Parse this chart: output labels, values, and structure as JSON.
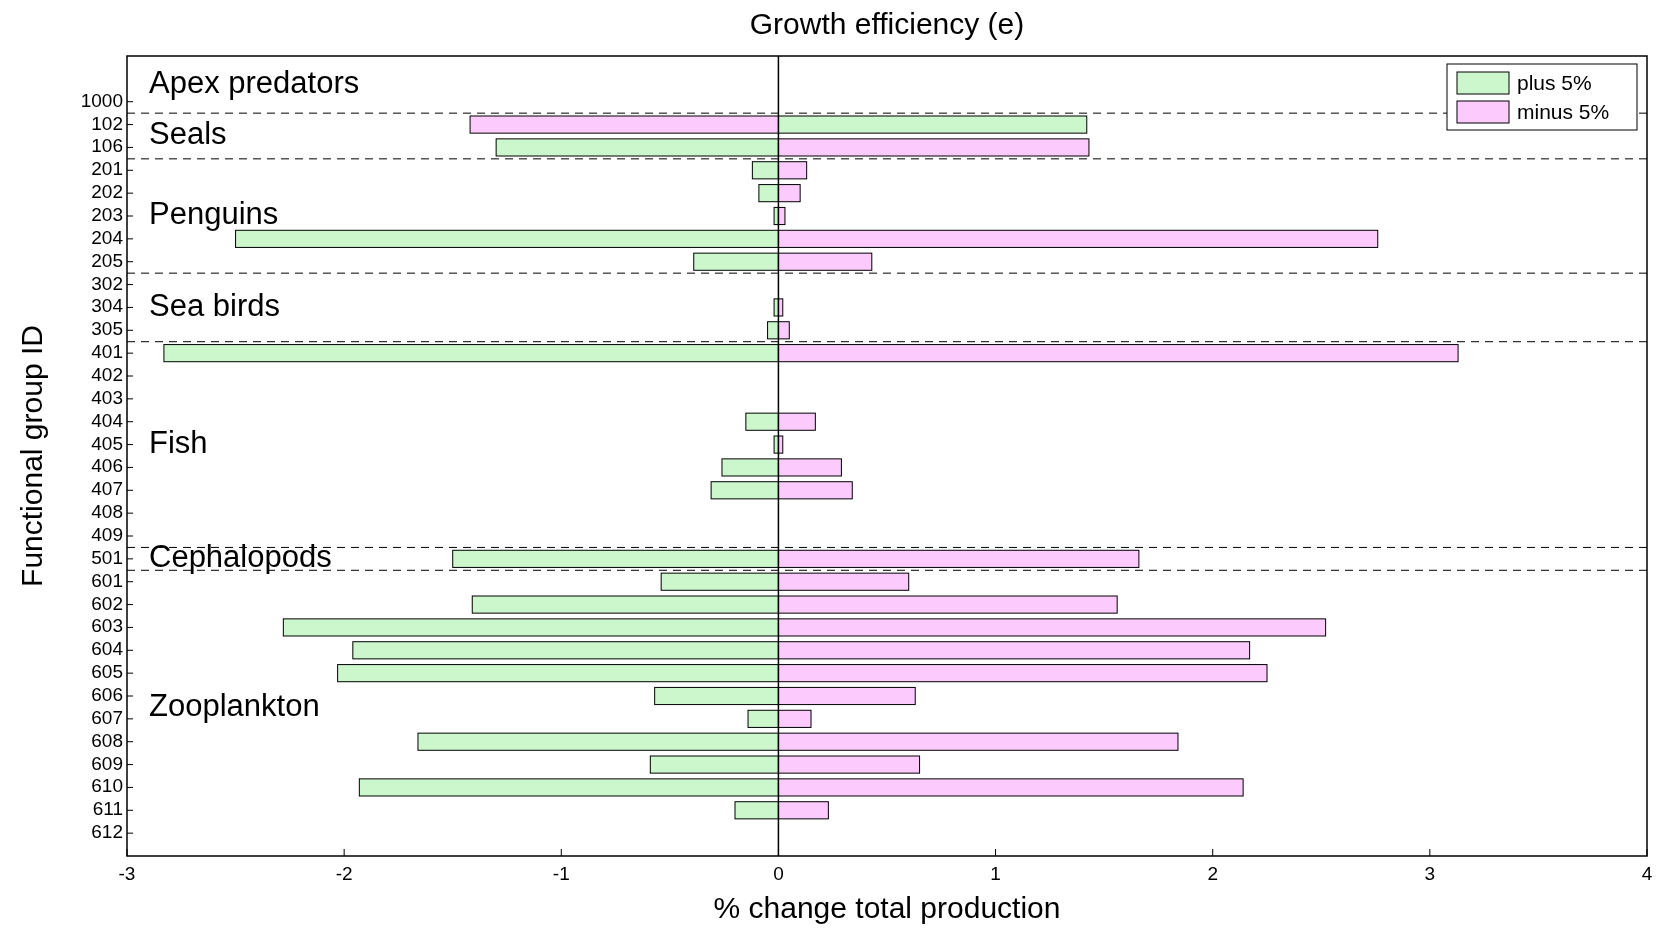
{
  "chart_data": {
    "type": "bar",
    "orientation": "horizontal",
    "title": "Growth efficiency (e)",
    "xlabel": "% change total production",
    "ylabel": "Functional group ID",
    "categories": [
      "1000",
      "102",
      "106",
      "201",
      "202",
      "203",
      "204",
      "205",
      "302",
      "304",
      "305",
      "401",
      "402",
      "403",
      "404",
      "405",
      "406",
      "407",
      "408",
      "409",
      "501",
      "601",
      "602",
      "603",
      "604",
      "605",
      "606",
      "607",
      "608",
      "609",
      "610",
      "611",
      "612"
    ],
    "series": [
      {
        "name": "plus 5%",
        "color": "#ccf7cc",
        "values": [
          0,
          1.42,
          -1.3,
          -0.12,
          -0.09,
          -0.02,
          -2.5,
          -0.39,
          0,
          -0.02,
          -0.05,
          -2.83,
          0,
          0,
          -0.15,
          -0.02,
          -0.26,
          -0.31,
          0,
          0,
          -1.5,
          -0.54,
          -1.41,
          -2.28,
          -1.96,
          -2.03,
          -0.57,
          -0.14,
          -1.66,
          -0.59,
          -1.93,
          -0.2,
          0
        ]
      },
      {
        "name": "minus 5%",
        "color": "#fccafc",
        "values": [
          0,
          -1.42,
          1.43,
          0.13,
          0.1,
          0.03,
          2.76,
          0.43,
          0,
          0.02,
          0.05,
          3.13,
          0,
          0,
          0.17,
          0.02,
          0.29,
          0.34,
          0,
          0,
          1.66,
          0.6,
          1.56,
          2.52,
          2.17,
          2.25,
          0.63,
          0.15,
          1.84,
          0.65,
          2.14,
          0.23,
          0
        ]
      }
    ],
    "stacked": true,
    "xlim": [
      -3,
      4
    ],
    "xticks": [
      -3,
      -2,
      -1,
      0,
      1,
      2,
      3,
      4
    ],
    "grid": false,
    "legend": "top right",
    "ref_lines": [
      {
        "axis": "y",
        "value": "1000",
        "line_style": "dashed"
      },
      {
        "axis": "y",
        "value": "106",
        "line_style": "dashed"
      },
      {
        "axis": "y",
        "value": "205",
        "line_style": "dashed"
      },
      {
        "axis": "y",
        "value": "305",
        "line_style": "dashed"
      },
      {
        "axis": "y",
        "value": "409",
        "line_style": "dashed"
      },
      {
        "axis": "y",
        "value": "501",
        "line_style": "dashed"
      }
    ],
    "annotations": [
      "Apex predators",
      "Seals",
      "Penguins",
      "Sea birds",
      "Fish",
      "Cephalopods",
      "Zooplankton"
    ]
  }
}
